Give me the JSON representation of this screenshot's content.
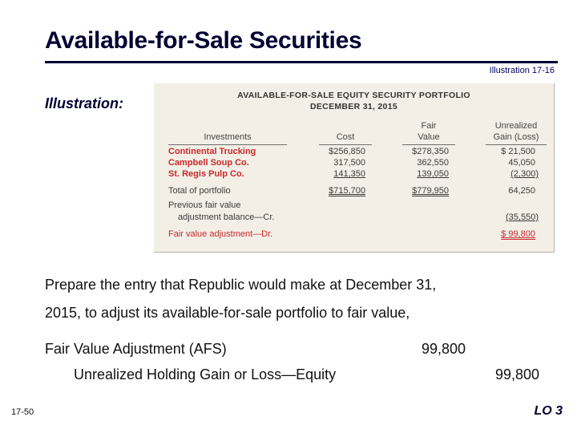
{
  "slide": {
    "title": "Available-for-Sale Securities",
    "illustration_ref": "Illustration 17-16",
    "illustration_label": "Illustration:",
    "page_number": "17-50",
    "lo_label": "LO 3"
  },
  "portfolio": {
    "heading_line1": "AVAILABLE-FOR-SALE EQUITY SECURITY PORTFOLIO",
    "heading_line2": "DECEMBER 31, 2015",
    "columns": {
      "investments": "Investments",
      "cost": "Cost",
      "fair_value_1": "Fair",
      "fair_value_2": "Value",
      "gain_1": "Unrealized",
      "gain_2": "Gain (Loss)"
    },
    "rows": [
      {
        "name": "Continental Trucking",
        "cost": "$256,850",
        "fair": "$278,350",
        "gain": "$ 21,500"
      },
      {
        "name": "Campbell Soup Co.",
        "cost": "317,500",
        "fair": "362,550",
        "gain": "45,050"
      },
      {
        "name": "St. Regis Pulp Co.",
        "cost": "141,350",
        "fair": "139,050",
        "gain": "(2,300)"
      }
    ],
    "total": {
      "label": "Total of portfolio",
      "cost": "$715,700",
      "fair": "$779,950",
      "gain": "64,250"
    },
    "previous": {
      "label_1": "Previous fair value",
      "label_2": "adjustment balance—Cr.",
      "gain": "(35,550)"
    },
    "adjustment": {
      "label": "Fair value adjustment—Dr.",
      "gain": "$ 99,800"
    },
    "colors": {
      "accent_red": "#c8282d",
      "panel_bg": "#f3efe6"
    }
  },
  "body": {
    "line1": "Prepare the entry that Republic would make at December 31,",
    "line2": "2015, to adjust its available-for-sale portfolio to fair value,"
  },
  "journal": {
    "debit_account": "Fair Value Adjustment (AFS)",
    "debit_amount": "99,800",
    "credit_account": "Unrealized Holding Gain or Loss—Equity",
    "credit_amount": "99,800"
  }
}
